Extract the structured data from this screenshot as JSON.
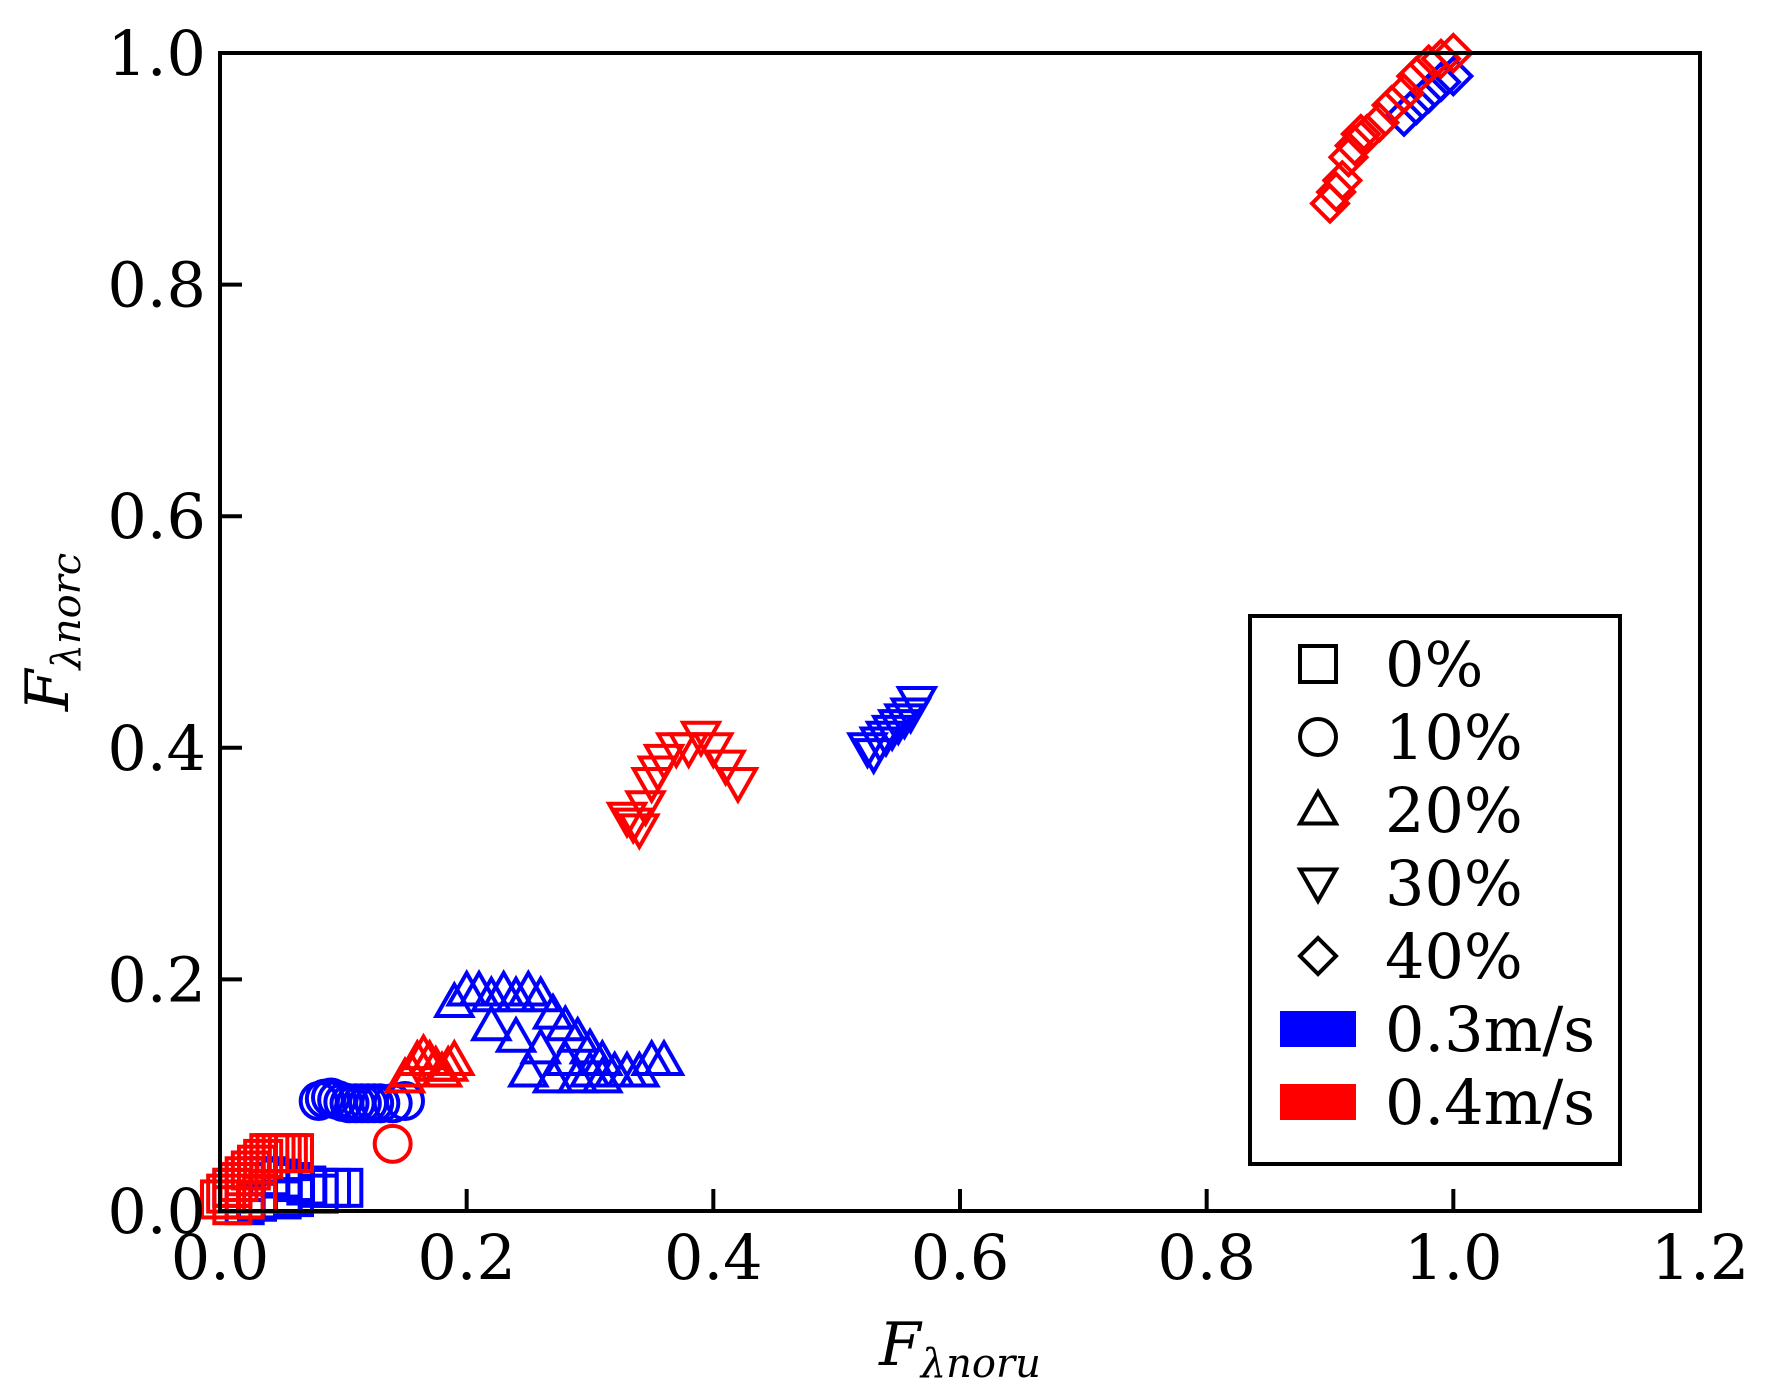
{
  "chart_data": {
    "type": "scatter",
    "title": "",
    "xlabel": {
      "main": "F",
      "sub": "λnoru"
    },
    "ylabel": {
      "main": "F",
      "sub": "λnorc"
    },
    "xlim": [
      0.0,
      1.2
    ],
    "ylim": [
      0.0,
      1.0
    ],
    "xticks": [
      "0.0",
      "0.2",
      "0.4",
      "0.6",
      "0.8",
      "1.0",
      "1.2"
    ],
    "yticks": [
      "0.0",
      "0.2",
      "0.4",
      "0.6",
      "0.8",
      "1.0"
    ],
    "grid": false,
    "legend_position": "lower-right",
    "legend": {
      "shapes": [
        {
          "label": "0%",
          "marker": "square"
        },
        {
          "label": "10%",
          "marker": "circle"
        },
        {
          "label": "20%",
          "marker": "triangle-up"
        },
        {
          "label": "30%",
          "marker": "triangle-down"
        },
        {
          "label": "40%",
          "marker": "diamond"
        }
      ],
      "colors": [
        {
          "label": "0.3m/s",
          "color": "#0000ff"
        },
        {
          "label": "0.4m/s",
          "color": "#ff0000"
        }
      ]
    },
    "series": [
      {
        "name": "0% @ 0.3m/s",
        "marker": "square",
        "color": "#0000ff",
        "x": [
          0.01,
          0.02,
          0.03,
          0.04,
          0.05,
          0.06,
          0.07,
          0.08,
          0.09,
          0.1,
          0.02,
          0.03,
          0.05,
          0.06,
          0.08
        ],
        "y": [
          0.02,
          0.025,
          0.03,
          0.03,
          0.028,
          0.025,
          0.022,
          0.02,
          0.02,
          0.02,
          0.005,
          0.008,
          0.01,
          0.012,
          0.015
        ]
      },
      {
        "name": "0% @ 0.4m/s",
        "marker": "square",
        "color": "#ff0000",
        "x": [
          0.0,
          0.005,
          0.01,
          0.015,
          0.02,
          0.025,
          0.03,
          0.035,
          0.04,
          0.045,
          0.05,
          0.055,
          0.06,
          0.01,
          0.02,
          0.03
        ],
        "y": [
          0.01,
          0.015,
          0.02,
          0.025,
          0.03,
          0.035,
          0.04,
          0.045,
          0.05,
          0.05,
          0.05,
          0.05,
          0.05,
          0.005,
          0.01,
          0.015
        ]
      },
      {
        "name": "10% @ 0.3m/s",
        "marker": "circle",
        "color": "#0000ff",
        "x": [
          0.08,
          0.085,
          0.09,
          0.095,
          0.1,
          0.105,
          0.11,
          0.115,
          0.12,
          0.125,
          0.13,
          0.14,
          0.15
        ],
        "y": [
          0.095,
          0.097,
          0.098,
          0.096,
          0.094,
          0.093,
          0.093,
          0.093,
          0.093,
          0.093,
          0.093,
          0.093,
          0.095
        ]
      },
      {
        "name": "10% @ 0.4m/s",
        "marker": "circle",
        "color": "#ff0000",
        "x": [
          0.14
        ],
        "y": [
          0.058
        ]
      },
      {
        "name": "20% @ 0.3m/s",
        "marker": "triangle-up",
        "color": "#0000ff",
        "x": [
          0.19,
          0.2,
          0.21,
          0.22,
          0.23,
          0.24,
          0.25,
          0.26,
          0.27,
          0.28,
          0.29,
          0.3,
          0.31,
          0.32,
          0.33,
          0.34,
          0.35,
          0.36,
          0.22,
          0.24,
          0.26,
          0.28,
          0.3,
          0.25,
          0.27,
          0.29,
          0.31
        ],
        "y": [
          0.18,
          0.19,
          0.19,
          0.185,
          0.19,
          0.185,
          0.19,
          0.185,
          0.17,
          0.16,
          0.15,
          0.14,
          0.13,
          0.12,
          0.12,
          0.12,
          0.13,
          0.13,
          0.16,
          0.15,
          0.14,
          0.13,
          0.12,
          0.12,
          0.115,
          0.115,
          0.115
        ]
      },
      {
        "name": "20% @ 0.4m/s",
        "marker": "triangle-up",
        "color": "#ff0000",
        "x": [
          0.15,
          0.155,
          0.16,
          0.165,
          0.17,
          0.175,
          0.18,
          0.185,
          0.19
        ],
        "y": [
          0.115,
          0.12,
          0.13,
          0.135,
          0.13,
          0.125,
          0.12,
          0.125,
          0.13
        ]
      },
      {
        "name": "30% @ 0.3m/s",
        "marker": "triangle-down",
        "color": "#0000ff",
        "x": [
          0.525,
          0.53,
          0.535,
          0.54,
          0.545,
          0.55,
          0.555,
          0.56,
          0.565
        ],
        "y": [
          0.4,
          0.395,
          0.405,
          0.41,
          0.415,
          0.42,
          0.425,
          0.43,
          0.44
        ]
      },
      {
        "name": "30% @ 0.4m/s",
        "marker": "triangle-down",
        "color": "#ff0000",
        "x": [
          0.33,
          0.335,
          0.34,
          0.345,
          0.35,
          0.355,
          0.36,
          0.37,
          0.38,
          0.39,
          0.4,
          0.41,
          0.42
        ],
        "y": [
          0.34,
          0.335,
          0.33,
          0.35,
          0.37,
          0.38,
          0.39,
          0.4,
          0.4,
          0.41,
          0.4,
          0.385,
          0.37
        ]
      },
      {
        "name": "40% @ 0.3m/s",
        "marker": "diamond",
        "color": "#0000ff",
        "x": [
          0.96,
          0.97,
          0.98,
          0.99,
          1.0
        ],
        "y": [
          0.945,
          0.955,
          0.965,
          0.975,
          0.98
        ]
      },
      {
        "name": "40% @ 0.4m/s",
        "marker": "diamond",
        "color": "#ff0000",
        "x": [
          0.9,
          0.905,
          0.91,
          0.915,
          0.92,
          0.925,
          0.93,
          0.94,
          0.95,
          0.96,
          0.97,
          0.98,
          0.99,
          1.0
        ],
        "y": [
          0.87,
          0.88,
          0.89,
          0.91,
          0.92,
          0.93,
          0.93,
          0.94,
          0.955,
          0.965,
          0.98,
          0.99,
          0.995,
          1.0
        ]
      }
    ]
  }
}
